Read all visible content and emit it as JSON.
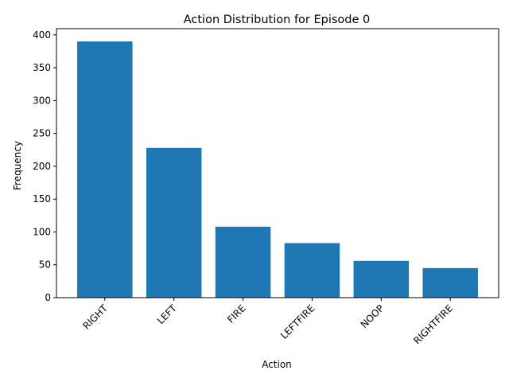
{
  "chart_data": {
    "type": "bar",
    "title": "Action Distribution for Episode 0",
    "xlabel": "Action",
    "ylabel": "Frequency",
    "categories": [
      "RIGHT",
      "LEFT",
      "FIRE",
      "LEFTFIRE",
      "NOOP",
      "RIGHTFIRE"
    ],
    "values": [
      390,
      228,
      108,
      83,
      56,
      45
    ],
    "ylim": [
      0,
      409.5
    ],
    "yticks": [
      0,
      50,
      100,
      150,
      200,
      250,
      300,
      350,
      400
    ],
    "bar_color": "#1f77b4",
    "grid": false,
    "legend": "none"
  }
}
